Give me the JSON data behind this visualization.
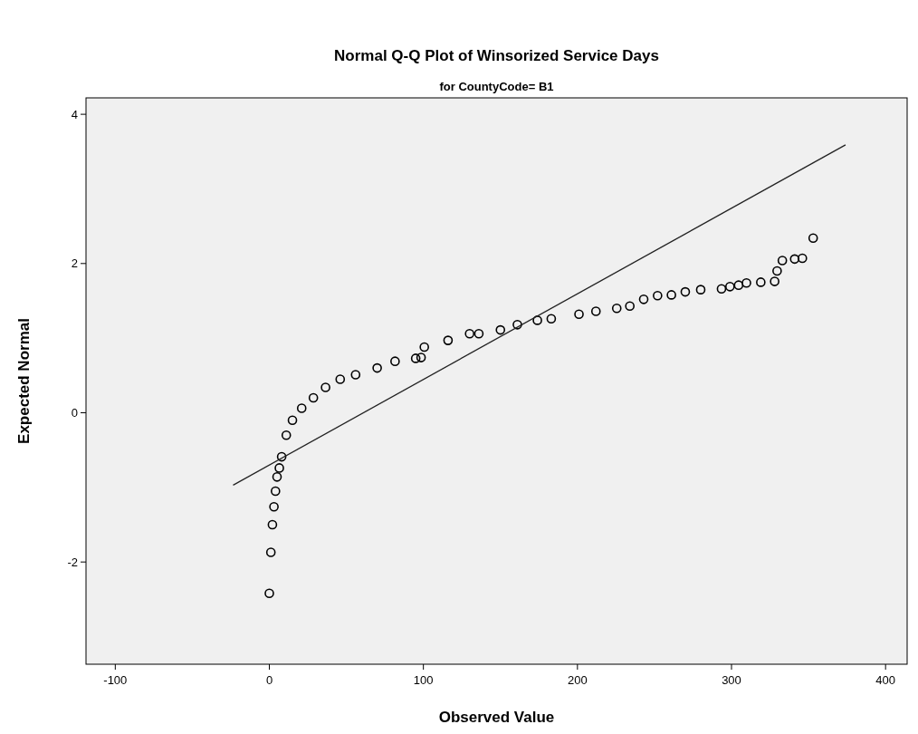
{
  "chart_data": {
    "type": "scatter",
    "title": "Normal Q-Q Plot of Winsorized Service Days",
    "subtitle": "for CountyCode= B1",
    "xlabel": "Observed Value",
    "ylabel": "Expected Normal",
    "xlim": [
      -119,
      414
    ],
    "xticks": [
      -100,
      0,
      100,
      200,
      300,
      400
    ],
    "ylim": [
      -3.37,
      4.22
    ],
    "yticks": [
      -2,
      0,
      2,
      4
    ],
    "grid": false,
    "series": [
      {
        "color": "#000000",
        "marker": "circle",
        "x": [
          0,
          1,
          2,
          3,
          4,
          5,
          6.5,
          8,
          11,
          15,
          21,
          28.6,
          36.5,
          46,
          56,
          70,
          81.6,
          95,
          98.5,
          100.6,
          116,
          130,
          136,
          150,
          161,
          174,
          183,
          201,
          212,
          225.5,
          234,
          243,
          252,
          261,
          270,
          280,
          293.5,
          299,
          304.6,
          309.7,
          319,
          328,
          329.6,
          333,
          341,
          346,
          353
        ],
        "values": [
          -2.42,
          -1.87,
          -1.5,
          -1.26,
          -1.05,
          -0.86,
          -0.74,
          -0.59,
          -0.3,
          -0.1,
          0.06,
          0.2,
          0.34,
          0.45,
          0.51,
          0.6,
          0.69,
          0.73,
          0.74,
          0.88,
          0.97,
          1.06,
          1.06,
          1.11,
          1.18,
          1.24,
          1.26,
          1.32,
          1.36,
          1.4,
          1.43,
          1.52,
          1.57,
          1.58,
          1.62,
          1.65,
          1.66,
          1.69,
          1.71,
          1.74,
          1.75,
          1.76,
          1.9,
          2.04,
          2.06,
          2.07,
          2.34
        ]
      },
      {
        "type": "line",
        "color": "#222222",
        "x": [
          -23.5,
          374
        ],
        "values": [
          -0.97,
          3.59
        ],
        "line_style": "solid"
      }
    ]
  }
}
